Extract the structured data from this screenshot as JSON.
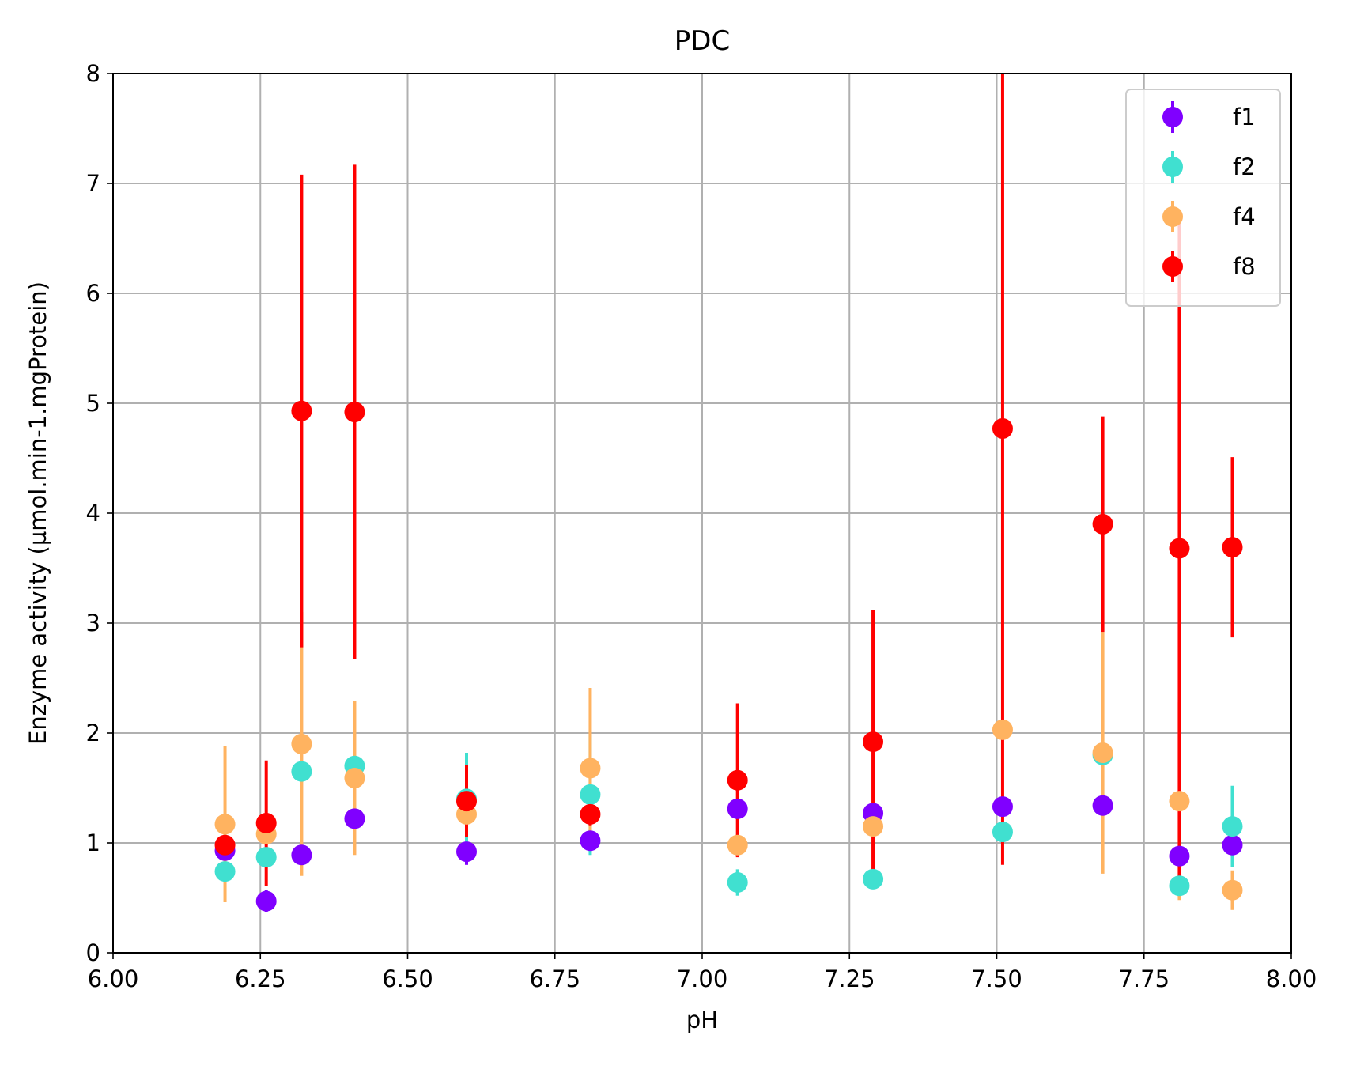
{
  "chart_data": {
    "type": "scatter",
    "title": "PDC",
    "xlabel": "pH",
    "ylabel": "Enzyme activity (µmol.min-1.mgProtein)",
    "xlim": [
      6.0,
      8.0
    ],
    "ylim": [
      0,
      8
    ],
    "xticks": [
      6.0,
      6.25,
      6.5,
      6.75,
      7.0,
      7.25,
      7.5,
      7.75,
      8.0
    ],
    "xtick_labels": [
      "6.00",
      "6.25",
      "6.50",
      "6.75",
      "7.00",
      "7.25",
      "7.50",
      "7.75",
      "8.00"
    ],
    "yticks": [
      0,
      1,
      2,
      3,
      4,
      5,
      6,
      7,
      8
    ],
    "ytick_labels": [
      "0",
      "1",
      "2",
      "3",
      "4",
      "5",
      "6",
      "7",
      "8"
    ],
    "grid": true,
    "legend_position": "top-right",
    "series": [
      {
        "name": "f1",
        "color": "#8000ff",
        "x": [
          6.19,
          6.26,
          6.32,
          6.41,
          6.6,
          6.81,
          7.06,
          7.29,
          7.51,
          7.68,
          7.81,
          7.9
        ],
        "y": [
          0.93,
          0.47,
          0.89,
          1.22,
          0.92,
          1.02,
          1.31,
          1.27,
          1.33,
          1.34,
          0.88,
          0.98
        ],
        "err": [
          0.05,
          0.1,
          0.05,
          0.05,
          0.12,
          0.1,
          0.05,
          0.05,
          0.05,
          0.05,
          0.05,
          0.2
        ]
      },
      {
        "name": "f2",
        "color": "#40e0d0",
        "x": [
          6.19,
          6.26,
          6.32,
          6.41,
          6.6,
          6.81,
          7.06,
          7.29,
          7.51,
          7.68,
          7.81,
          7.9
        ],
        "y": [
          0.74,
          0.87,
          1.65,
          1.7,
          1.4,
          1.44,
          0.64,
          0.67,
          1.1,
          1.8,
          0.61,
          1.15
        ],
        "err": [
          0.05,
          0.05,
          0.05,
          0.05,
          0.42,
          0.55,
          0.12,
          0.05,
          0.05,
          0.05,
          0.1,
          0.37
        ]
      },
      {
        "name": "f4",
        "color": "#ffb360",
        "x": [
          6.19,
          6.26,
          6.32,
          6.41,
          6.6,
          6.81,
          7.06,
          7.29,
          7.51,
          7.68,
          7.81,
          7.9
        ],
        "y": [
          1.17,
          1.08,
          1.9,
          1.59,
          1.26,
          1.68,
          0.98,
          1.15,
          2.03,
          1.82,
          1.38,
          0.57
        ],
        "err": [
          0.71,
          0.1,
          1.2,
          0.7,
          0.05,
          0.73,
          0.1,
          0.05,
          0.05,
          1.1,
          0.9,
          0.18
        ]
      },
      {
        "name": "f8",
        "color": "#ff0000",
        "x": [
          6.19,
          6.26,
          6.32,
          6.41,
          6.6,
          6.81,
          7.06,
          7.29,
          7.51,
          7.68,
          7.81,
          7.9
        ],
        "y": [
          0.98,
          1.18,
          4.93,
          4.92,
          1.38,
          1.26,
          1.57,
          1.92,
          4.77,
          3.9,
          3.68,
          3.69
        ],
        "err": [
          0.05,
          0.57,
          2.15,
          2.25,
          0.33,
          0.1,
          0.7,
          1.2,
          3.97,
          0.98,
          3.0,
          0.82
        ]
      }
    ]
  }
}
